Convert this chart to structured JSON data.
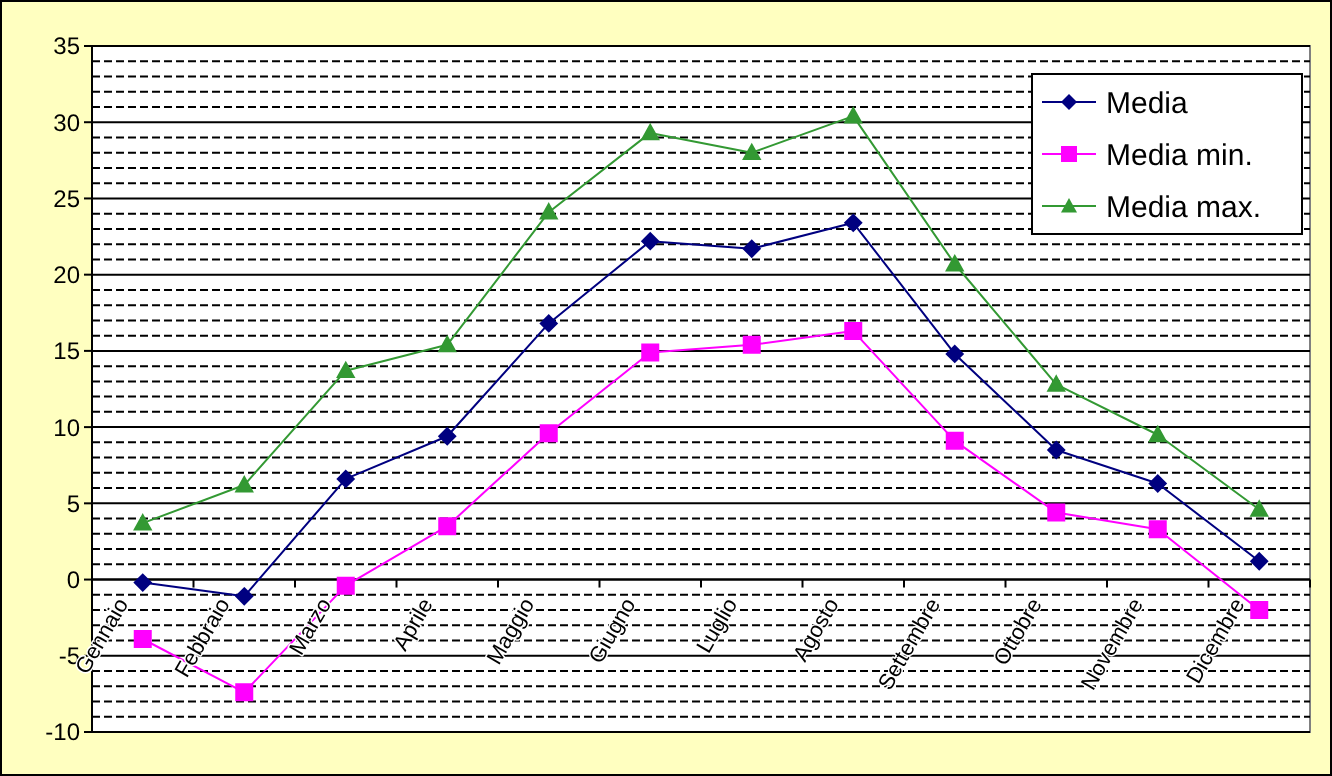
{
  "chart_data": {
    "type": "line",
    "categories": [
      "Gennaio",
      "Febbraio",
      "Marzo",
      "Aprile",
      "Maggio",
      "Giugno",
      "Luglio",
      "Agosto",
      "Settembre",
      "Ottobre",
      "Novembre",
      "Dicembre"
    ],
    "series": [
      {
        "name": "Media",
        "color": "#000080",
        "marker": "diamond",
        "values": [
          -0.2,
          -1.1,
          6.6,
          9.4,
          16.8,
          22.2,
          21.7,
          23.4,
          14.8,
          8.5,
          6.3,
          1.2
        ]
      },
      {
        "name": "Media min.",
        "color": "#ff00ff",
        "marker": "square",
        "values": [
          -3.9,
          -7.4,
          -0.4,
          3.5,
          9.6,
          14.9,
          15.4,
          16.3,
          9.1,
          4.4,
          3.3,
          -2.0
        ]
      },
      {
        "name": "Media max.",
        "color": "#339933",
        "marker": "triangle",
        "values": [
          3.7,
          6.2,
          13.7,
          15.4,
          24.1,
          29.3,
          28.0,
          30.4,
          20.7,
          12.8,
          9.5,
          4.6
        ]
      }
    ],
    "ylim": [
      -10,
      35
    ],
    "yticks": [
      -10,
      {
        "value": -9,
        "label": null
      },
      {
        "value": -8,
        "label": null
      },
      {
        "value": -7,
        "label": null
      },
      {
        "value": -6,
        "label": null
      },
      -5,
      {
        "value": -4,
        "label": null
      },
      {
        "value": -3,
        "label": null
      },
      {
        "value": -2,
        "label": null
      },
      {
        "value": -1,
        "label": null
      },
      0,
      {
        "value": 1,
        "label": null
      },
      {
        "value": 2,
        "label": null
      },
      {
        "value": 3,
        "label": null
      },
      {
        "value": 4,
        "label": null
      },
      5,
      {
        "value": 6,
        "label": null
      },
      {
        "value": 7,
        "label": null
      },
      {
        "value": 8,
        "label": null
      },
      {
        "value": 9,
        "label": null
      },
      10,
      {
        "value": 11,
        "label": null
      },
      {
        "value": 12,
        "label": null
      },
      {
        "value": 13,
        "label": null
      },
      {
        "value": 14,
        "label": null
      },
      15,
      {
        "value": 16,
        "label": null
      },
      {
        "value": 17,
        "label": null
      },
      {
        "value": 18,
        "label": null
      },
      {
        "value": 19,
        "label": null
      },
      20,
      {
        "value": 21,
        "label": null
      },
      {
        "value": 22,
        "label": null
      },
      {
        "value": 23,
        "label": null
      },
      {
        "value": 24,
        "label": null
      },
      25,
      {
        "value": 26,
        "label": null
      },
      {
        "value": 27,
        "label": null
      },
      {
        "value": 28,
        "label": null
      },
      {
        "value": 29,
        "label": null
      },
      30,
      {
        "value": 31,
        "label": null
      },
      {
        "value": 32,
        "label": null
      },
      {
        "value": 33,
        "label": null
      },
      {
        "value": 34,
        "label": null
      },
      35
    ],
    "grid": "y",
    "legend": "top right",
    "line_style": "solid"
  }
}
